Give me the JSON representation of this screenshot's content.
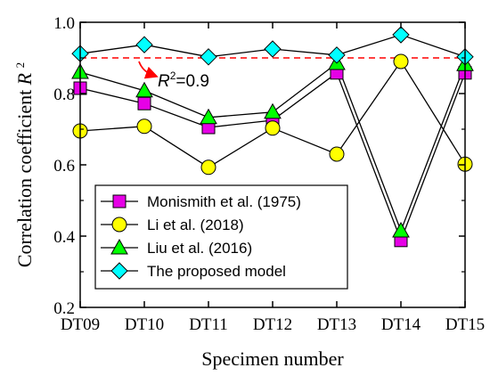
{
  "chart_data": {
    "type": "line",
    "x_categories": [
      "DT09",
      "DT10",
      "DT11",
      "DT12",
      "DT13",
      "DT14",
      "DT15"
    ],
    "xlabel": "Specimen number",
    "ylabel_main": "Correlation coefficient",
    "ylabel_symbol": "R",
    "ylabel_sup": "2",
    "ylim": [
      0.2,
      1.0
    ],
    "yticks": [
      "0.2",
      "0.4",
      "0.6",
      "0.8",
      "1.0"
    ],
    "grid": false,
    "legend_position": "bottom-left",
    "series": [
      {
        "name": "Monismith et al. (1975)",
        "marker": "square",
        "color": "#e600e6",
        "values": [
          0.815,
          0.772,
          0.705,
          0.725,
          0.858,
          0.388,
          0.858
        ]
      },
      {
        "name": "Li et al. (2018)",
        "marker": "circle",
        "color": "#ffff00",
        "values": [
          0.695,
          0.708,
          0.593,
          0.703,
          0.63,
          0.89,
          0.602
        ]
      },
      {
        "name": "Liu et al. (2016)",
        "marker": "triangle",
        "color": "#00ff00",
        "values": [
          0.86,
          0.808,
          0.733,
          0.748,
          0.885,
          0.415,
          0.882
        ]
      },
      {
        "name": "The proposed model",
        "marker": "diamond",
        "color": "#00ffff",
        "values": [
          0.912,
          0.937,
          0.903,
          0.925,
          0.908,
          0.965,
          0.903
        ]
      }
    ],
    "reference_line": {
      "value": 0.9,
      "color": "#ff0000",
      "style": "dashed",
      "label_symbol": "R",
      "label_sup": "2",
      "label_value": "=0.9"
    }
  }
}
